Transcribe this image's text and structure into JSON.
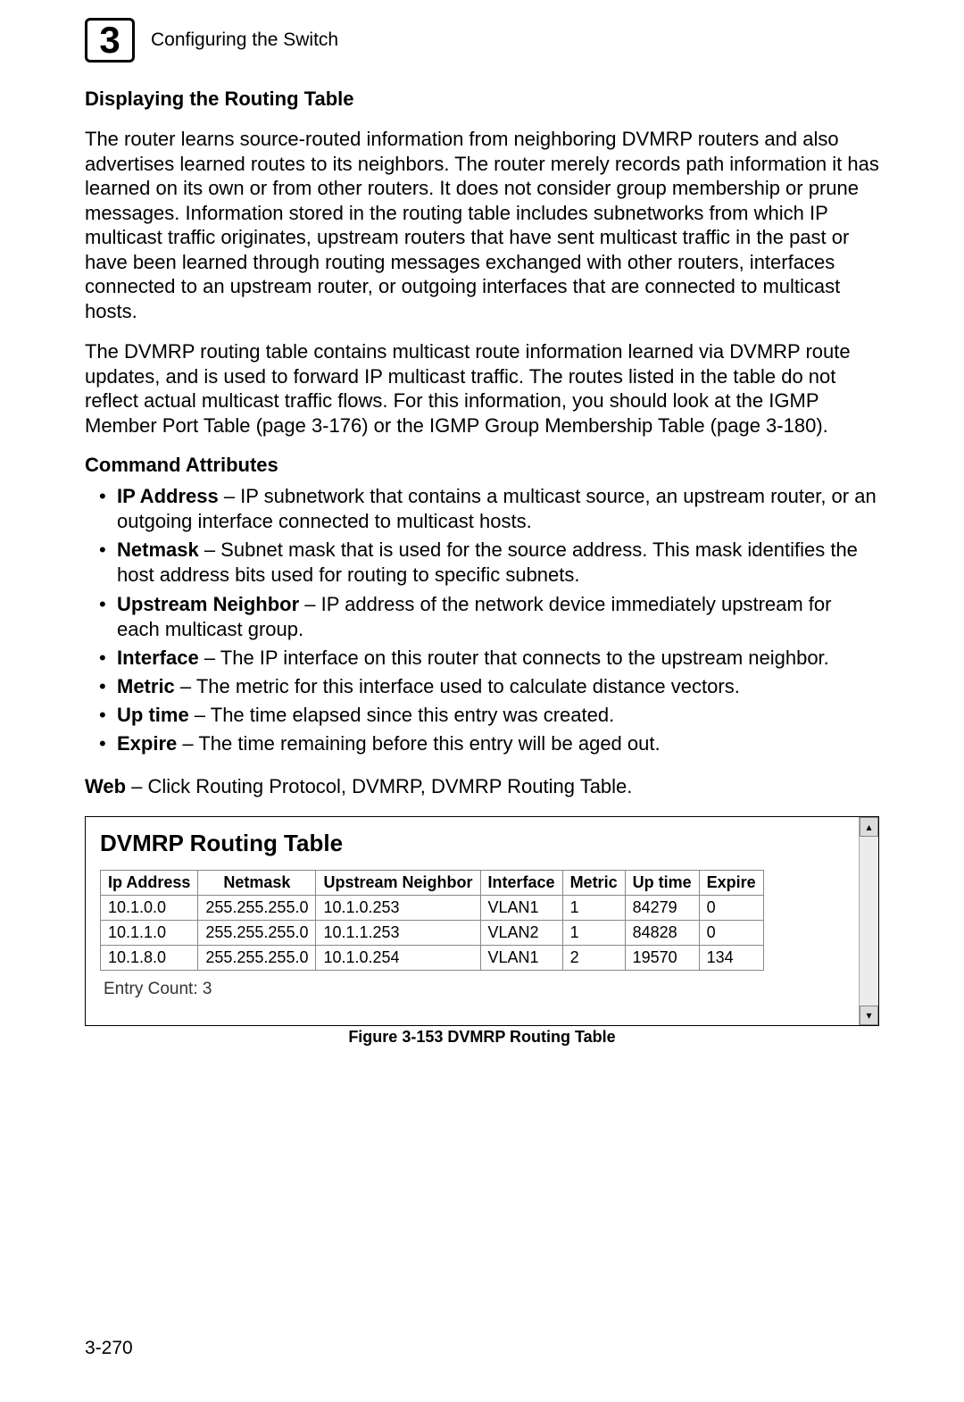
{
  "header": {
    "chapterNumber": "3",
    "chapterTitle": "Configuring the Switch"
  },
  "section": {
    "title": "Displaying the Routing Table",
    "para1": "The router learns source-routed information from neighboring DVMRP routers and also advertises learned routes to its neighbors. The router merely records path information it has learned on its own or from other routers. It does not consider group membership or prune messages. Information stored in the routing table includes subnetworks from which IP multicast traffic originates, upstream routers that have sent multicast traffic in the past or have been learned through routing messages exchanged with other routers, interfaces connected to an upstream router, or outgoing interfaces that are connected to multicast hosts.",
    "para2": "The DVMRP routing table contains multicast route information learned via DVMRP route updates, and is used to forward IP multicast traffic. The routes listed in the table do not reflect actual multicast traffic flows. For this information, you should look at the IGMP Member Port Table (page 3-176) or the IGMP Group Membership Table (page 3-180)."
  },
  "commandAttributes": {
    "heading": "Command Attributes",
    "items": [
      {
        "name": "IP Address",
        "desc": " – IP subnetwork that contains a multicast source, an upstream router, or an outgoing interface connected to multicast hosts."
      },
      {
        "name": "Netmask",
        "desc": " – Subnet mask that is used for the source address. This mask identifies the host address bits used for routing to specific subnets."
      },
      {
        "name": "Upstream Neighbor",
        "desc": " – IP address of the network device immediately upstream for each multicast group."
      },
      {
        "name": "Interface",
        "desc": " – The IP interface on this router that connects to the upstream neighbor."
      },
      {
        "name": "Metric",
        "desc": " – The metric for this interface used to calculate distance vectors."
      },
      {
        "name": "Up time",
        "desc": " – The time elapsed since this entry was created."
      },
      {
        "name": "Expire",
        "desc": " – The time remaining before this entry will be aged out."
      }
    ]
  },
  "webLine": {
    "label": "Web",
    "rest": " – Click Routing Protocol, DVMRP, DVMRP Routing Table."
  },
  "figure": {
    "panelTitle": "DVMRP Routing Table",
    "columns": [
      "Ip Address",
      "Netmask",
      "Upstream Neighbor",
      "Interface",
      "Metric",
      "Up time",
      "Expire"
    ],
    "rows": [
      [
        "10.1.0.0",
        "255.255.255.0",
        "10.1.0.253",
        "VLAN1",
        "1",
        "84279",
        "0"
      ],
      [
        "10.1.1.0",
        "255.255.255.0",
        "10.1.1.253",
        "VLAN2",
        "1",
        "84828",
        "0"
      ],
      [
        "10.1.8.0",
        "255.255.255.0",
        "10.1.0.254",
        "VLAN1",
        "2",
        "19570",
        "134"
      ]
    ],
    "entryCount": "Entry Count: 3",
    "caption": "Figure 3-153   DVMRP Routing Table",
    "scroll": {
      "up": "▴",
      "down": "▾"
    }
  },
  "pageNumber": "3-270"
}
